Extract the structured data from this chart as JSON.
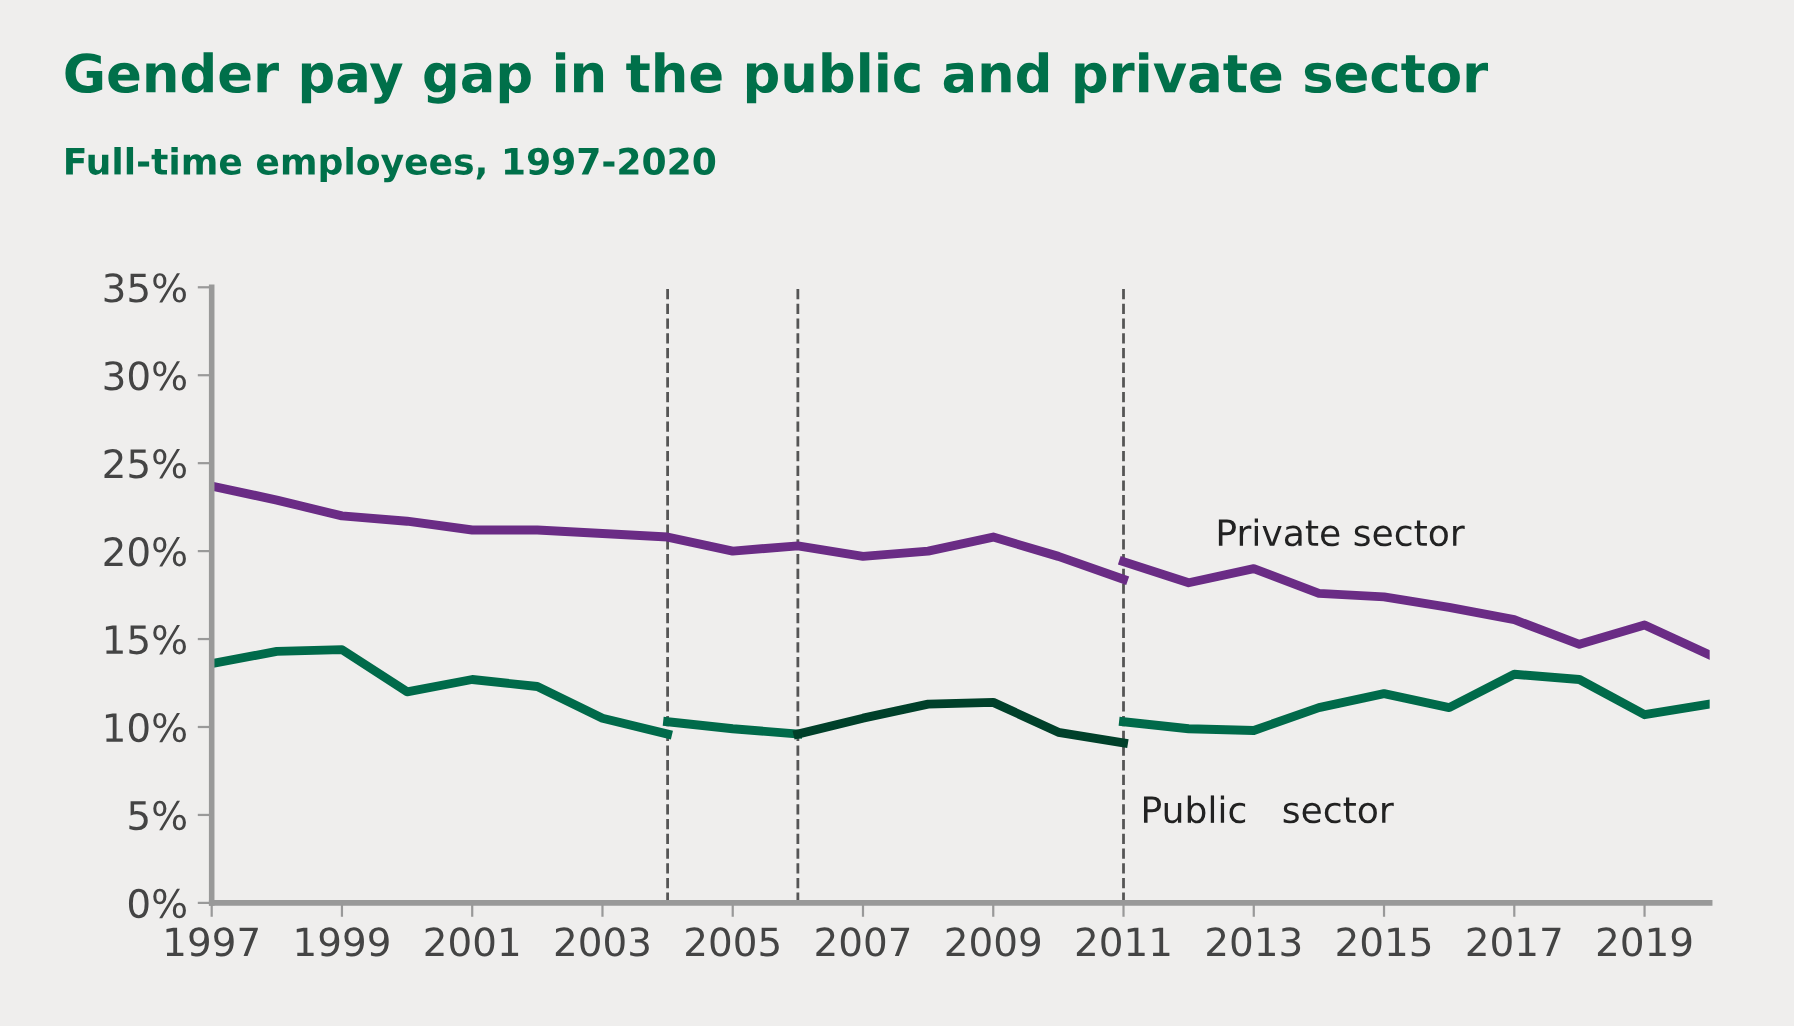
{
  "chart_data": {
    "type": "line",
    "title": "Gender pay gap in the public and private sector",
    "subtitle": "Full-time employees, 1997-2020",
    "series": [
      {
        "name": "Private sector",
        "color": "#6a2c85",
        "x": [
          1997,
          1998,
          1999,
          2000,
          2001,
          2002,
          2003,
          2004,
          2005,
          2006,
          2007,
          2008,
          2009,
          2010,
          2011
        ],
        "values": [
          23.7,
          22.9,
          22.0,
          21.7,
          21.2,
          21.2,
          21.0,
          20.8,
          20.0,
          20.3,
          19.7,
          20.0,
          20.8,
          19.7,
          18.4
        ]
      },
      {
        "color": "#6a2c85",
        "x": [
          2011,
          2012,
          2013,
          2014,
          2015,
          2016,
          2017,
          2018,
          2019,
          2020
        ],
        "values": [
          19.4,
          18.2,
          19.0,
          17.6,
          17.4,
          16.8,
          16.1,
          14.7,
          15.8,
          14.1
        ]
      },
      {
        "name": "Public   sector",
        "color": "#006a4a",
        "x": [
          1997,
          1998,
          1999,
          2000,
          2001,
          2002,
          2003,
          2004
        ],
        "values": [
          13.6,
          14.3,
          14.4,
          12.0,
          12.7,
          12.3,
          10.5,
          9.6
        ]
      },
      {
        "color": "#006a4a",
        "x": [
          2004,
          2005,
          2006
        ],
        "values": [
          10.3,
          9.9,
          9.6
        ]
      },
      {
        "color": "#00402a",
        "x": [
          2006,
          2007,
          2008,
          2009,
          2010,
          2011
        ],
        "values": [
          9.6,
          10.5,
          11.3,
          11.4,
          9.7,
          9.1
        ]
      },
      {
        "color": "#006a4a",
        "x": [
          2011,
          2012,
          2013,
          2014,
          2015,
          2016,
          2017,
          2018,
          2019,
          2020
        ],
        "values": [
          10.3,
          9.9,
          9.8,
          11.1,
          11.9,
          11.1,
          13.0,
          12.7,
          10.7,
          11.3
        ]
      }
    ],
    "xlim": [
      1997,
      2020
    ],
    "xticks": [
      1997,
      1999,
      2001,
      2003,
      2005,
      2007,
      2009,
      2011,
      2013,
      2015,
      2017,
      2019
    ],
    "ylim": [
      0,
      35
    ],
    "yticks": [
      {
        "value": 0,
        "label": "0%"
      },
      {
        "value": 5,
        "label": "5%"
      },
      {
        "value": 10,
        "label": "10%"
      },
      {
        "value": 15,
        "label": "15%"
      },
      {
        "value": 20,
        "label": "20%"
      },
      {
        "value": 25,
        "label": "25%"
      },
      {
        "value": 30,
        "label": "30%"
      },
      {
        "value": 35,
        "label": "35%"
      }
    ],
    "ref_lines": [
      {
        "axis": "x",
        "value": 2004,
        "color": "#555555",
        "line_style": "dashed"
      },
      {
        "axis": "x",
        "value": 2006,
        "color": "#555555",
        "line_style": "dashed"
      },
      {
        "axis": "x",
        "value": 2011,
        "color": "#555555",
        "line_style": "dashed"
      }
    ],
    "grid": false,
    "legend": false,
    "marker": "none",
    "line_style": "solid"
  }
}
